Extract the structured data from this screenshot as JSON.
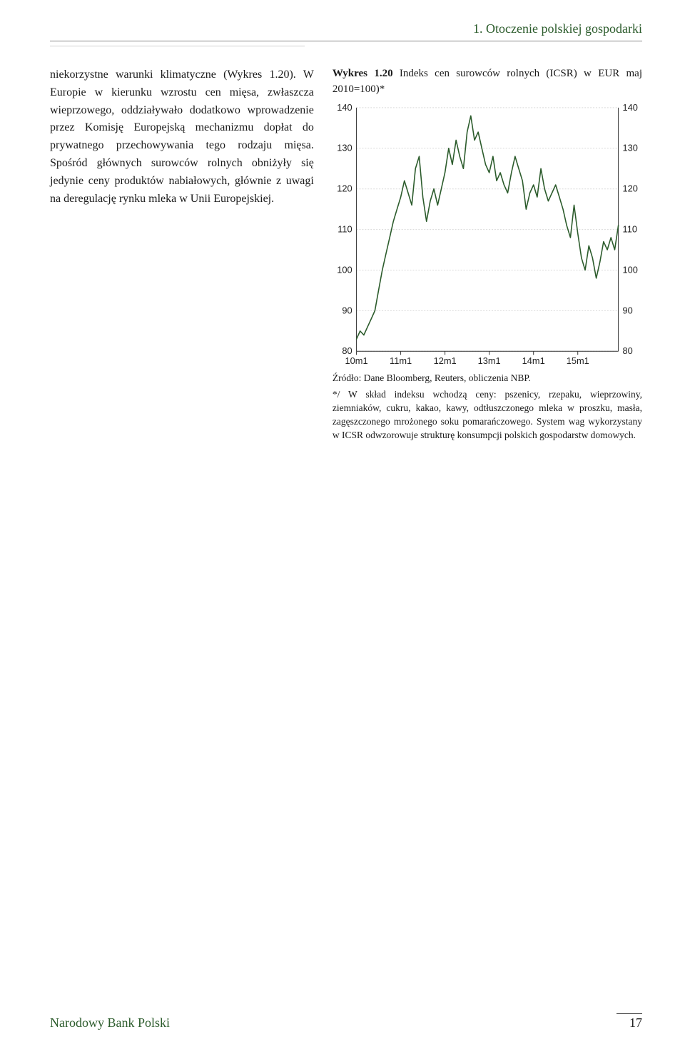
{
  "header": {
    "section_label": "1. Otoczenie polskiej gospodarki"
  },
  "left_paragraph": "niekorzystne warunki klimatyczne (Wykres 1.20). W Europie w kierunku wzrostu cen mięsa, zwłaszcza wieprzowego, oddziaływało dodatkowo wprowadzenie przez Komisję Europejską mechanizmu dopłat do prywatnego przechowywania tego rodzaju mięsa. Spośród głównych surowców rolnych obniżyły się jedynie ceny produktów nabiałowych, głównie z uwagi na deregulację rynku mleka w Unii Europejskiej.",
  "figure": {
    "label": "Wykres 1.20",
    "title_rest": " Indeks cen surowców rolnych (ICSR) w EUR maj 2010=100)*",
    "source": "Źródło: Dane Bloomberg, Reuters, obliczenia NBP.",
    "note": "*/ W skład indeksu wchodzą ceny: pszenicy, rzepaku, wieprzowiny, ziemniaków, cukru, kakao, kawy, odtłuszczonego mleka w proszku, masła, zagęszczonego mrożonego soku pomarańczowego. System wag wykorzystany w ICSR odwzorowuje strukturę konsumpcji polskich gospodarstw domowych."
  },
  "chart": {
    "type": "line",
    "ylim": [
      80,
      140
    ],
    "ytick_step": 10,
    "yticks": [
      80,
      90,
      100,
      110,
      120,
      130,
      140
    ],
    "xticks": [
      "10m1",
      "11m1",
      "12m1",
      "13m1",
      "14m1",
      "15m1"
    ],
    "x_range_months": 72,
    "line_color": "#2b5b2b",
    "line_width": 1.6,
    "grid_color": "#d9d9d9",
    "axis_color": "#333333",
    "background_color": "#ffffff",
    "tick_fontsize": 13,
    "series": [
      83,
      85,
      84,
      86,
      88,
      90,
      95,
      100,
      104,
      108,
      112,
      115,
      118,
      122,
      119,
      116,
      125,
      128,
      118,
      112,
      117,
      120,
      116,
      120,
      124,
      130,
      126,
      132,
      128,
      125,
      134,
      138,
      132,
      134,
      130,
      126,
      124,
      128,
      122,
      124,
      121,
      119,
      124,
      128,
      125,
      122,
      115,
      119,
      121,
      118,
      125,
      120,
      117,
      119,
      121,
      118,
      115,
      111,
      108,
      116,
      109,
      103,
      100,
      106,
      103,
      98,
      102,
      107,
      105,
      108,
      105,
      111
    ]
  },
  "footer": {
    "publisher": "Narodowy Bank Polski",
    "page_number": "17"
  }
}
